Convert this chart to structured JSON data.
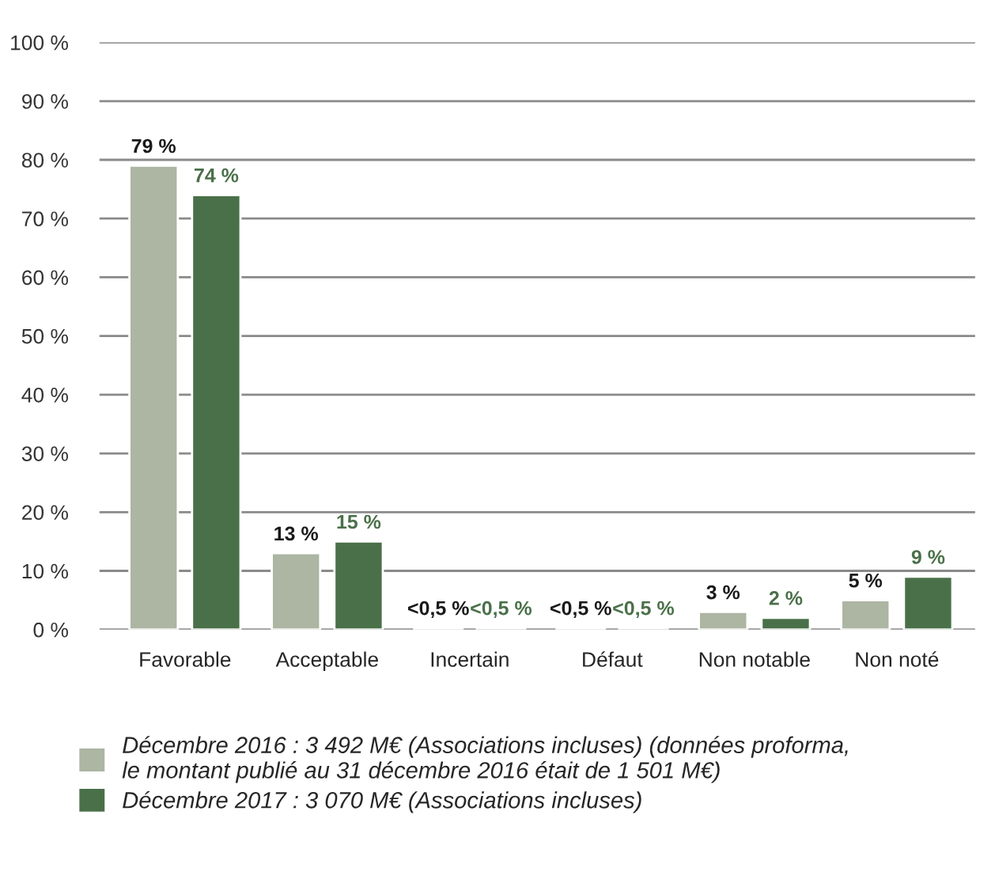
{
  "chart_data": {
    "type": "bar",
    "categories": [
      "Favorable",
      "Acceptable",
      "Incertain",
      "Défaut",
      "Non notable",
      "Non noté"
    ],
    "series": [
      {
        "name": "Décembre 2016 : 3 492 M€ (Associations incluses) (données proforma,\nle montant publié au 31 décembre 2016 était de 1 501 M€)",
        "color": "#adb5a3",
        "values": [
          79,
          13,
          0.3,
          0.3,
          3,
          5
        ],
        "value_labels": [
          "79 %",
          "13 %",
          "<0,5 %",
          "<0,5 %",
          "3 %",
          "5 %"
        ]
      },
      {
        "name": "Décembre 2017 : 3 070 M€ (Associations incluses)",
        "color": "#4a7049",
        "values": [
          74,
          15,
          0.3,
          0.3,
          2,
          9
        ],
        "value_labels": [
          "74 %",
          "15 %",
          "<0,5 %",
          "<0,5 %",
          "2 %",
          "9 %"
        ]
      }
    ],
    "ylim": [
      0,
      100
    ],
    "yticks": [
      {
        "value": 0,
        "label": "0 %"
      },
      {
        "value": 10,
        "label": "10 %"
      },
      {
        "value": 20,
        "label": "20 %"
      },
      {
        "value": 30,
        "label": "30 %"
      },
      {
        "value": 40,
        "label": "40 %"
      },
      {
        "value": 50,
        "label": "50 %"
      },
      {
        "value": 60,
        "label": "60 %"
      },
      {
        "value": 70,
        "label": "70 %"
      },
      {
        "value": 80,
        "label": "80 %"
      },
      {
        "value": 90,
        "label": "90 %"
      },
      {
        "value": 100,
        "label": "100 %"
      }
    ],
    "grid": "y",
    "legend": "bottom"
  }
}
